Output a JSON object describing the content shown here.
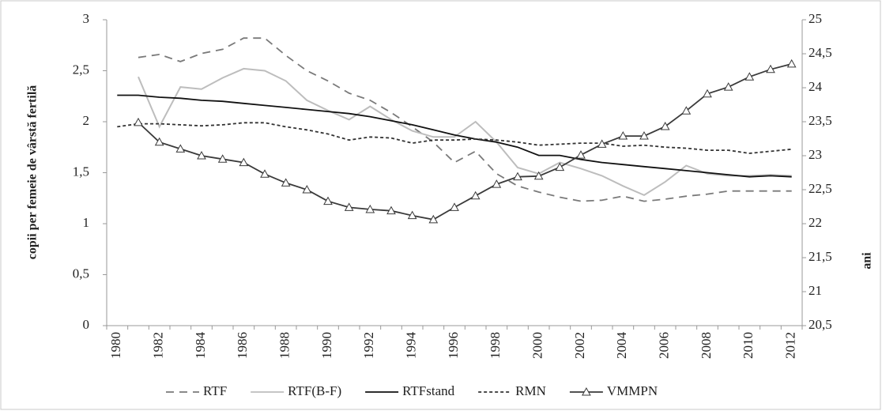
{
  "chart_data": {
    "type": "line",
    "y_label": "copii  per femeie de vârstă fertilă",
    "y2_label": "ani",
    "categories": [
      "1980",
      null,
      "1982",
      null,
      "1984",
      null,
      "1986",
      null,
      "1988",
      null,
      "1990",
      null,
      "1992",
      null,
      "1994",
      null,
      "1996",
      null,
      "1998",
      null,
      "2000",
      null,
      "2002",
      null,
      "2004",
      null,
      "2006",
      null,
      "2008",
      null,
      "2010",
      null,
      "2012"
    ],
    "ylim": [
      0,
      3
    ],
    "yticks": [
      0,
      {
        "value": 0.5,
        "label": "0,5"
      },
      1,
      {
        "value": 1.5,
        "label": "1,5"
      },
      2,
      {
        "value": 2.5,
        "label": "2,5"
      },
      3
    ],
    "y2lim": [
      20.5,
      25
    ],
    "y2ticks": [
      {
        "value": 20.5,
        "label": "20,5"
      },
      21,
      {
        "value": 21.5,
        "label": "21,5"
      },
      22,
      {
        "value": 22.5,
        "label": "22,5"
      },
      23,
      {
        "value": 23.5,
        "label": "23,5"
      },
      24,
      {
        "value": 24.5,
        "label": "24,5"
      },
      25
    ],
    "grid": false,
    "legend": "bottom",
    "series": [
      {
        "name": "RTF",
        "color": "#7a7a7a",
        "dash": "10 7",
        "marker": "none",
        "values": [
          null,
          2.63,
          2.66,
          2.59,
          2.67,
          2.71,
          2.82,
          2.82,
          2.65,
          2.5,
          2.4,
          2.28,
          2.21,
          2.09,
          1.95,
          1.8,
          1.6,
          1.71,
          1.49,
          1.37,
          1.31,
          1.26,
          1.22,
          1.23,
          1.27,
          1.22,
          1.24,
          1.27,
          1.29,
          1.32,
          1.32,
          1.32,
          1.32
        ]
      },
      {
        "name": "RTF(B-F)",
        "color": "#bdbdbd",
        "dash": "none",
        "marker": "none",
        "values": [
          null,
          2.44,
          1.95,
          2.34,
          2.32,
          2.43,
          2.52,
          2.5,
          2.4,
          2.21,
          2.11,
          2.02,
          2.15,
          2.02,
          1.91,
          1.85,
          1.85,
          2.0,
          1.8,
          1.55,
          1.49,
          1.6,
          1.54,
          1.47,
          1.37,
          1.28,
          1.41,
          1.57,
          1.49,
          1.47,
          1.47,
          1.48,
          1.47
        ]
      },
      {
        "name": "RTFstand",
        "color": "#111111",
        "dash": "none",
        "marker": "none",
        "values": [
          2.26,
          2.26,
          2.24,
          2.23,
          2.21,
          2.2,
          2.18,
          2.16,
          2.14,
          2.12,
          2.1,
          2.08,
          2.05,
          2.01,
          1.97,
          1.92,
          1.87,
          1.83,
          1.8,
          1.75,
          1.67,
          1.67,
          1.63,
          1.6,
          1.58,
          1.56,
          1.54,
          1.52,
          1.5,
          1.48,
          1.46,
          1.47,
          1.46
        ]
      },
      {
        "name": "RMN",
        "color": "#333333",
        "dash": "4 3",
        "marker": "none",
        "values": [
          1.95,
          1.98,
          1.98,
          1.97,
          1.96,
          1.97,
          1.99,
          1.99,
          1.95,
          1.92,
          1.88,
          1.82,
          1.85,
          1.84,
          1.79,
          1.82,
          1.82,
          1.83,
          1.82,
          1.8,
          1.77,
          1.78,
          1.79,
          1.79,
          1.76,
          1.77,
          1.75,
          1.74,
          1.72,
          1.72,
          1.69,
          1.71,
          1.73
        ]
      },
      {
        "name": "VMMPN",
        "color": "#3a3a3a",
        "dash": "none",
        "marker": "triangle",
        "axis": "y2",
        "values": [
          null,
          23.49,
          23.2,
          23.1,
          23.0,
          22.95,
          22.9,
          22.73,
          22.6,
          22.5,
          22.33,
          22.24,
          22.21,
          22.19,
          22.12,
          22.06,
          22.24,
          22.41,
          22.58,
          22.69,
          22.7,
          22.83,
          23.01,
          23.17,
          23.29,
          23.29,
          23.43,
          23.66,
          23.91,
          24.01,
          24.16,
          24.27,
          24.35
        ]
      }
    ]
  }
}
